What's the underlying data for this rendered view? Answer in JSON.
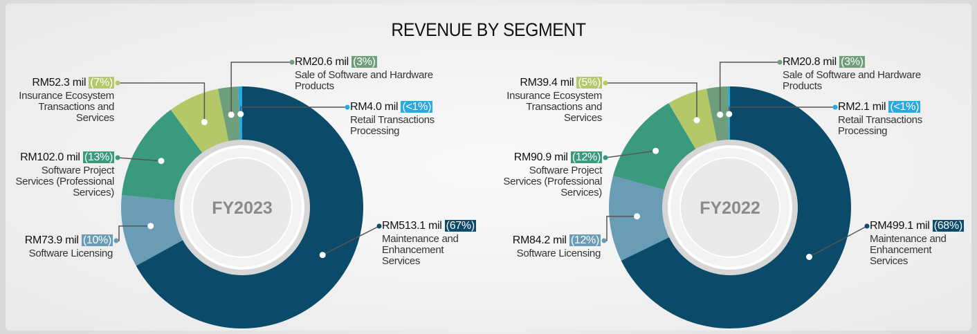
{
  "title": "REVENUE BY SEGMENT",
  "chart_data": [
    {
      "type": "pie",
      "center_label": "FY2023",
      "categories": [
        "Maintenance and Enhancement Services",
        "Software Licensing",
        "Software Project Services (Professional Services)",
        "Insurance Ecosystem Transactions and Services",
        "Sale of Software and Hardware Products",
        "Retail Transactions Processing"
      ],
      "values": [
        513.1,
        73.9,
        102.0,
        52.3,
        20.6,
        4.0
      ],
      "value_labels": [
        "RM513.1 mil",
        "RM73.9 mil",
        "RM102.0 mil",
        "RM52.3 mil",
        "RM20.6 mil",
        "RM4.0 mil"
      ],
      "percent_labels": [
        "(67%)",
        "(10%)",
        "(13%)",
        "(7%)",
        "(3%)",
        "(<1%)"
      ],
      "colors": [
        "#0c4a69",
        "#6a9cb6",
        "#3a9a7d",
        "#b4c86a",
        "#6f9e7d",
        "#27a9e1"
      ]
    },
    {
      "type": "pie",
      "center_label": "FY2022",
      "categories": [
        "Maintenance and Enhancement Services",
        "Software Licensing",
        "Software Project Services (Professional Services)",
        "Insurance Ecosystem Transactions and Services",
        "Sale of Software and Hardware Products",
        "Retail Transactions Processing"
      ],
      "values": [
        499.1,
        84.2,
        90.9,
        39.4,
        20.8,
        2.1
      ],
      "value_labels": [
        "RM499.1 mil",
        "RM84.2 mil",
        "RM90.9 mil",
        "RM39.4 mil",
        "RM20.8 mil",
        "RM2.1 mil"
      ],
      "percent_labels": [
        "(68%)",
        "(12%)",
        "(12%)",
        "(5%)",
        "(3%)",
        "(<1%)"
      ],
      "colors": [
        "#0c4a69",
        "#6a9cb6",
        "#3a9a7d",
        "#b4c86a",
        "#6f9e7d",
        "#27a9e1"
      ]
    }
  ]
}
